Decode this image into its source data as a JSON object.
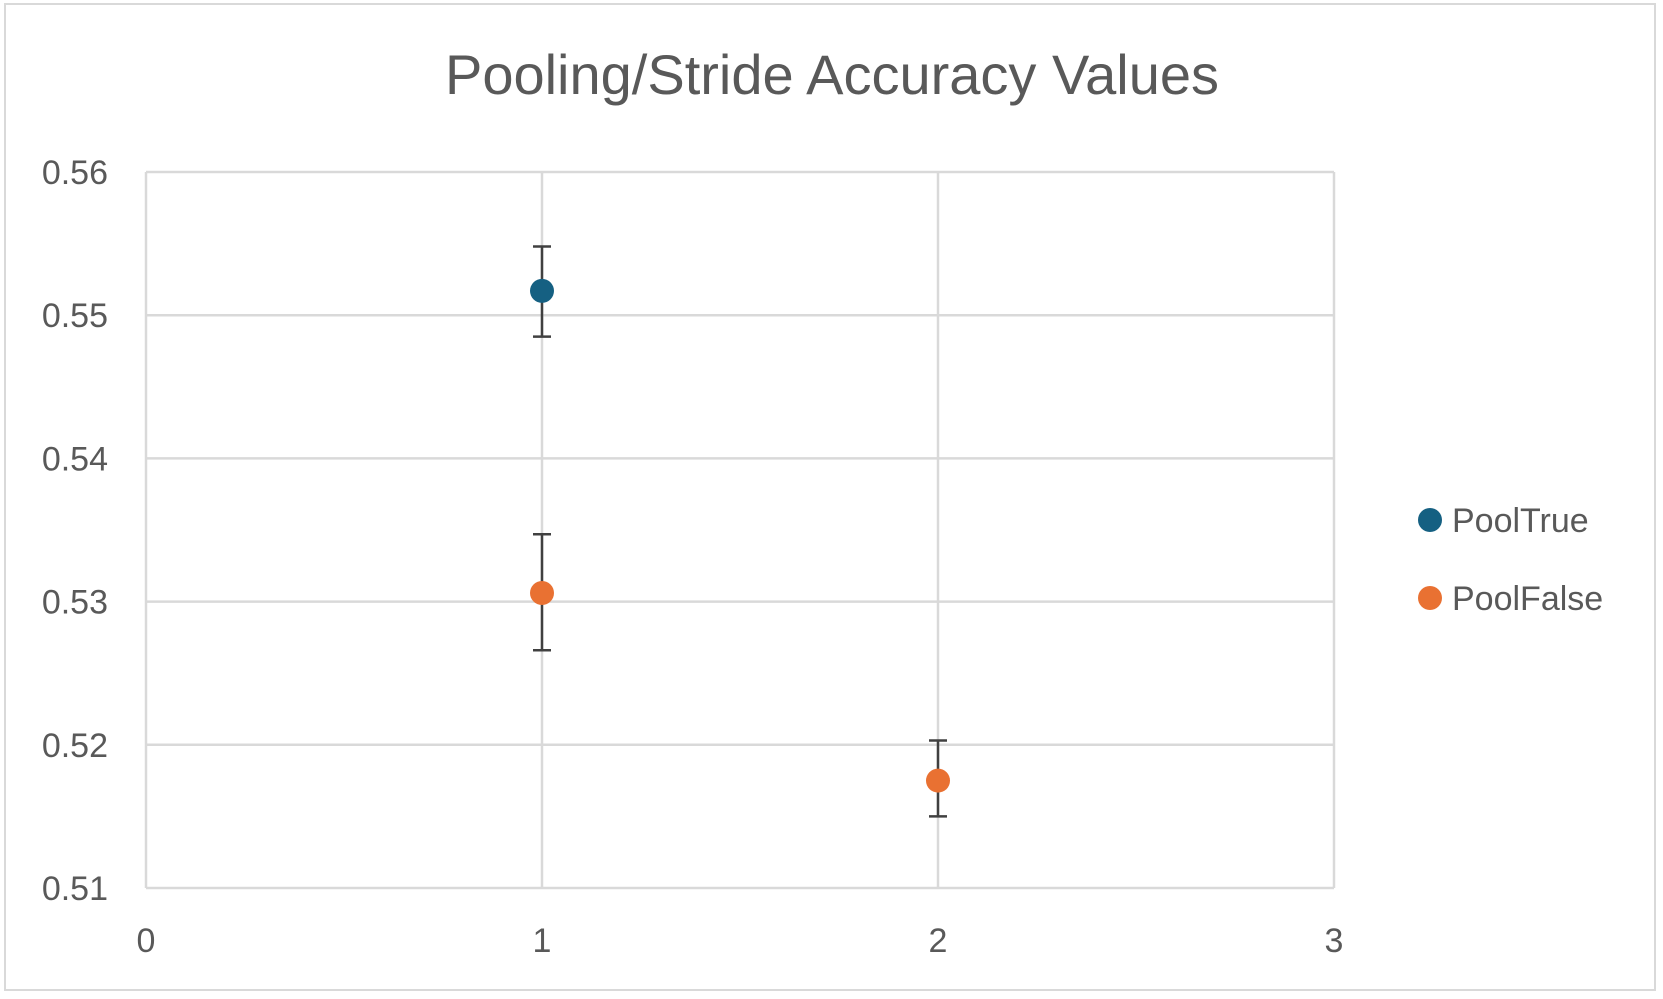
{
  "chart_data": {
    "type": "scatter",
    "title": "Pooling/Stride Accuracy Values",
    "xlabel": "",
    "ylabel": "",
    "xlim": [
      0,
      3
    ],
    "ylim": [
      0.51,
      0.56
    ],
    "x_ticks": [
      0,
      1,
      2,
      3
    ],
    "x_tick_labels": [
      "0",
      "1",
      "2",
      "3"
    ],
    "y_ticks": [
      0.51,
      0.52,
      0.53,
      0.54,
      0.55,
      0.56
    ],
    "y_tick_labels": [
      "0.51",
      "0.52",
      "0.53",
      "0.54",
      "0.55",
      "0.56"
    ],
    "grid": true,
    "legend_position": "right",
    "series": [
      {
        "name": "PoolTrue",
        "color": "#156082",
        "points": [
          {
            "x": 1,
            "y": 0.5517,
            "err_low": 0.5485,
            "err_high": 0.5548
          }
        ]
      },
      {
        "name": "PoolFalse",
        "color": "#E97132",
        "points": [
          {
            "x": 1,
            "y": 0.5306,
            "err_low": 0.5266,
            "err_high": 0.5347
          },
          {
            "x": 2,
            "y": 0.5175,
            "err_low": 0.515,
            "err_high": 0.5203
          }
        ]
      }
    ]
  }
}
